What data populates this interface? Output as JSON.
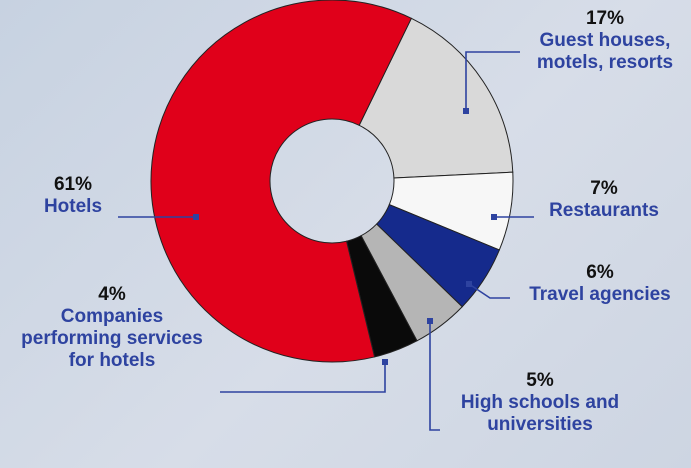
{
  "chart_data": {
    "type": "pie",
    "style": "donut",
    "slices": [
      {
        "label": "Guest houses, motels, resorts",
        "pct_text": "17%",
        "value": 17,
        "color": "#d9d9d9"
      },
      {
        "label": "Restaurants",
        "pct_text": "7%",
        "value": 7,
        "color": "#f7f7f7"
      },
      {
        "label": "Travel agencies",
        "pct_text": "6%",
        "value": 6,
        "color": "#152a8c"
      },
      {
        "label": "High schools and universities",
        "pct_text": "5%",
        "value": 5,
        "color": "#b5b5b5"
      },
      {
        "label": "Companies performing services for hotels",
        "pct_text": "4%",
        "value": 4,
        "color": "#0a0a0a"
      },
      {
        "label": "Hotels",
        "pct_text": "61%",
        "value": 61,
        "color": "#e0001a"
      }
    ],
    "leader_color": "#2e43a0"
  },
  "labels": {
    "guest": {
      "pct": "17%",
      "line1": "Guest houses,",
      "line2": "motels, resorts"
    },
    "restaurants": {
      "pct": "7%",
      "line1": "Restaurants"
    },
    "travel": {
      "pct": "6%",
      "line1": "Travel agencies"
    },
    "schools": {
      "pct": "5%",
      "line1": "High schools and",
      "line2": "universities"
    },
    "companies": {
      "pct": "4%",
      "line1": "Companies",
      "line2": "performing services",
      "line3": "for hotels"
    },
    "hotels": {
      "pct": "61%",
      "line1": "Hotels"
    }
  }
}
